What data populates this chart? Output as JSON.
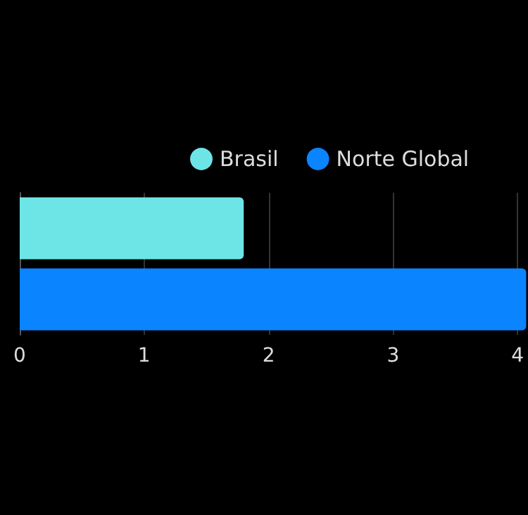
{
  "chart_data": {
    "type": "bar",
    "orientation": "horizontal",
    "stacked": true,
    "categories": [
      null,
      null
    ],
    "series": [
      {
        "name": "Brasil",
        "color": "#6de5e6",
        "values": [
          1.8,
          null
        ]
      },
      {
        "name": "Norte Global",
        "color": "#0a84ff",
        "values": [
          null,
          4.07
        ]
      }
    ],
    "xlim": [
      0,
      4.07
    ],
    "xticks": [
      0,
      1,
      2,
      3,
      4
    ],
    "grid": "x",
    "legend": "top"
  }
}
